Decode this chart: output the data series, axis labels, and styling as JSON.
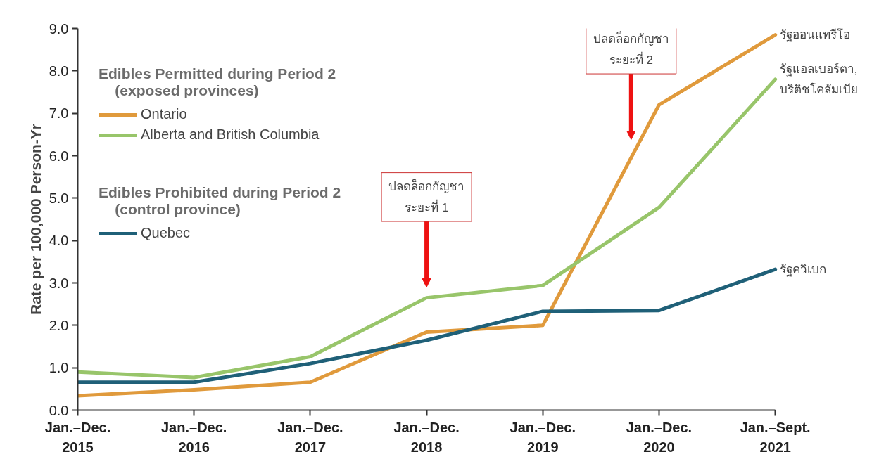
{
  "chart_data": {
    "type": "line",
    "ylabel": "Rate per 100,000 Person-Yr",
    "categories": [
      "Jan.–Dec.\n2015",
      "Jan.–Dec.\n2016",
      "Jan.–Dec.\n2017",
      "Jan.–Dec.\n2018",
      "Jan.–Dec.\n2019",
      "Jan.–Dec.\n2020",
      "Jan.–Sept.\n2021"
    ],
    "series": [
      {
        "name": "Ontario",
        "color": "#e09a3c",
        "values": [
          0.34,
          0.48,
          0.66,
          1.84,
          2.0,
          7.2,
          8.85
        ]
      },
      {
        "name": "Alberta and British Columbia",
        "color": "#98c56a",
        "values": [
          0.9,
          0.77,
          1.26,
          2.65,
          2.94,
          4.78,
          7.8
        ]
      },
      {
        "name": "Quebec",
        "color": "#1f6078",
        "values": [
          0.66,
          0.66,
          1.1,
          1.65,
          2.33,
          2.35,
          3.32
        ]
      }
    ],
    "ylim": [
      0,
      9
    ],
    "yticks": [
      {
        "value": 0,
        "label": "0.0"
      },
      {
        "value": 1,
        "label": "1.0"
      },
      {
        "value": 2,
        "label": "2.0"
      },
      {
        "value": 3,
        "label": "3.0"
      },
      {
        "value": 4,
        "label": "4.0"
      },
      {
        "value": 5,
        "label": "5.0"
      },
      {
        "value": 6,
        "label": "6.0"
      },
      {
        "value": 7,
        "label": "7.0"
      },
      {
        "value": 8,
        "label": "8.0"
      },
      {
        "value": 9,
        "label": "9.0"
      }
    ],
    "annotations": [
      "Edibles Permitted during Period 2\n    (exposed provinces)",
      "Edibles Prohibited during Period 2\n    (control province)",
      "ปลดล็อกกัญชา\nระยะที่ 1",
      "ปลดล็อกกัญชา\nระยะที่ 2",
      {
        "text": "รัฐออนแทรีโอ",
        "x": "Jan.–Sept.\n2021",
        "y": 8.85
      },
      {
        "text": "รัฐแอลเบอร์ตา,\nบริติชโคลัมเบีย",
        "x": "Jan.–Sept.\n2021",
        "y": 7.8
      },
      {
        "text": "รัฐควิเบก",
        "x": "Jan.–Sept.\n2021",
        "y": 3.32
      }
    ],
    "legend": "top left",
    "grid": false,
    "line_style": "solid",
    "marker": "none"
  }
}
